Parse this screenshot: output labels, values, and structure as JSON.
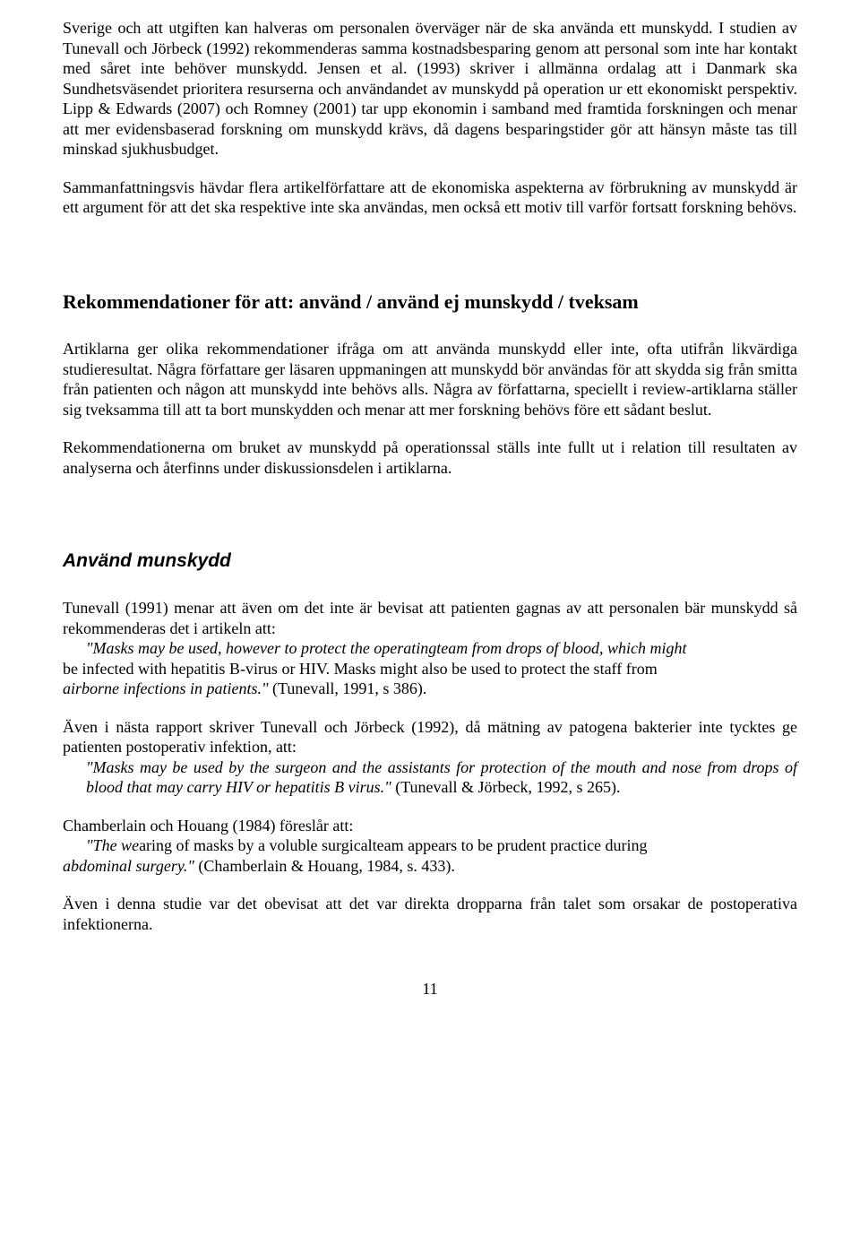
{
  "p1": "Sverige och att utgiften kan halveras om personalen överväger när de ska använda ett munskydd. I studien av Tunevall och Jörbeck (1992) rekommenderas samma kostnadsbesparing genom att personal som inte har kontakt med såret inte behöver munskydd. Jensen et al. (1993) skriver i allmänna ordalag att i Danmark ska Sundhetsväsendet prioritera resurserna och användandet av munskydd på operation ur ett ekonomiskt perspektiv. Lipp & Edwards (2007) och Romney (2001) tar upp ekonomin i samband med framtida forskningen och menar att mer evidensbaserad forskning om munskydd krävs, då dagens besparingstider gör att hänsyn måste tas till minskad sjukhusbudget.",
  "p2": "Sammanfattningsvis hävdar flera artikelförfattare att de ekonomiska aspekterna av förbrukning av munskydd är ett argument för att det ska respektive inte ska användas, men också ett motiv till varför fortsatt forskning behövs.",
  "h1": "Rekommendationer för att: använd / använd ej munskydd / tveksam",
  "p3": "Artiklarna ger olika rekommendationer ifråga om att använda munskydd eller inte, ofta utifrån likvärdiga studieresultat. Några författare ger läsaren uppmaningen att munskydd bör användas för att skydda sig från smitta från patienten och någon att munskydd inte behövs alls. Några av författarna, speciellt i review-artiklarna ställer sig tveksamma till att ta bort munskydden och menar att mer forskning behövs före ett sådant beslut.",
  "p4": "Rekommendationerna om bruket av munskydd på operationssal ställs inte fullt ut i relation till resultaten av analyserna och återfinns under diskussionsdelen i artiklarna.",
  "h2": "Använd munskydd",
  "p5a": "Tunevall (1991) menar att även om det inte är bevisat att patienten gagnas av att personalen bär munskydd så rekommenderas det i artikeln att:",
  "q1a": "\"Masks may be used, however to protect the operatingteam from drops of blood, which might ",
  "q1b": "be infected with hepatitis B-virus or HIV. Masks might also be used to protect the staff from",
  "q1c": "airborne infections in patients.\"",
  "q1d": " (Tunevall, 1991, s 386).",
  "p6": "Även i nästa rapport skriver Tunevall och Jörbeck (1992), då mätning av patogena bakterier inte tycktes ge patienten postoperativ infektion, att:",
  "q2a": "\"Masks may be used by the surgeon and the assistants for protection of the mouth and nose from drops of blood that may carry HIV or hepatitis B virus.\"",
  "q2b": " (Tunevall & Jörbeck, 1992, s 265).",
  "p7": "Chamberlain och Houang (1984) föreslår att:",
  "q3a_i": "\"The we",
  "q3a_r": "aring of masks by a voluble surgicalteam appears to be prudent practice during ",
  "q3b": "abdominal surgery.\"",
  "q3c": " (Chamberlain & Houang, 1984, s. 433).",
  "p8": "Även i denna studie var det obevisat att det var direkta dropparna från talet som orsakar de postoperativa infektionerna.",
  "pagenum": "11"
}
